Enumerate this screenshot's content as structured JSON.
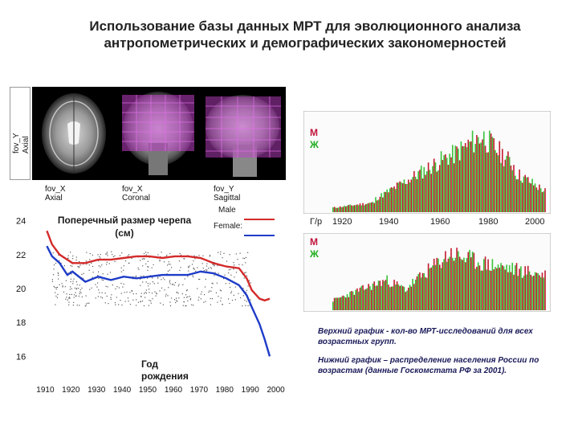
{
  "title_line1": "Использование базы данных МРТ для эволюционного анализа",
  "title_line2": "антропометрических и демографических закономерностей",
  "mri": {
    "side_label_1": "fov_Y",
    "side_label_2": "Axial",
    "captions": [
      {
        "l1": "fov_X",
        "l2": "Axial"
      },
      {
        "l1": "fov_X",
        "l2": "Coronal"
      },
      {
        "l1": "fov_Y",
        "l2": "Sagittal"
      }
    ]
  },
  "skull_chart": {
    "title_1": "Поперечный размер черепа",
    "title_2": "(см)",
    "legend_male": "Male",
    "legend_female": "Female:",
    "x_caption_1": "Год",
    "x_caption_2": "рождения",
    "y_ticks": [
      "24",
      "22",
      "20",
      "18",
      "16"
    ],
    "x_ticks": [
      "1910",
      "1920",
      "1930",
      "1940",
      "1950",
      "1960",
      "1970",
      "1980",
      "1990",
      "2000"
    ],
    "colors": {
      "male": "#d42a2a",
      "female": "#1e3cc8"
    }
  },
  "chart_data": [
    {
      "type": "line",
      "title": "Поперечный размер черепа (см)",
      "xlabel": "Год рождения",
      "x": [
        1910,
        1912,
        1915,
        1918,
        1920,
        1925,
        1930,
        1935,
        1940,
        1945,
        1950,
        1955,
        1960,
        1965,
        1970,
        1975,
        1980,
        1985,
        1988,
        1990,
        1993,
        1995,
        1997
      ],
      "series": [
        {
          "name": "Male",
          "values": [
            23.4,
            22.6,
            22.0,
            21.7,
            21.5,
            21.5,
            21.7,
            21.7,
            21.8,
            21.9,
            21.9,
            21.8,
            21.9,
            21.9,
            21.8,
            21.5,
            21.3,
            21.2,
            20.6,
            19.9,
            19.4,
            19.3,
            19.4
          ]
        },
        {
          "name": "Female",
          "values": [
            22.5,
            21.9,
            21.5,
            20.8,
            21.0,
            20.4,
            20.7,
            20.5,
            20.7,
            20.6,
            20.7,
            20.8,
            20.8,
            20.8,
            21.0,
            20.9,
            20.6,
            20.2,
            19.6,
            18.9,
            17.9,
            17.0,
            16.0
          ]
        }
      ],
      "ylim": [
        15.5,
        24.5
      ],
      "xlim": [
        1908,
        2002
      ]
    },
    {
      "type": "bar",
      "title": "",
      "x_ticks": [
        "1920",
        "1940",
        "1960",
        "1980",
        "2000"
      ],
      "x_prefix": "Г/р",
      "series": [
        {
          "name": "М"
        },
        {
          "name": "Ж"
        }
      ],
      "note": "Верхний график - кол-во МРТ-исследований для всех возрастных групп."
    },
    {
      "type": "bar",
      "title": "",
      "series": [
        {
          "name": "М"
        },
        {
          "name": "Ж"
        }
      ],
      "note": "Нижний график – распределение населения России по возрастам (данные Госкомстата РФ за 2001)."
    }
  ],
  "histo_top": {
    "m": "М",
    "zh": "Ж",
    "gr": "Г/р",
    "ticks": [
      "1920",
      "1940",
      "1960",
      "1980",
      "2000"
    ]
  },
  "histo_bottom": {
    "m": "М",
    "zh": "Ж"
  },
  "notes": {
    "upper": "Верхний график - кол-во МРТ-исследований для всех возрастных групп.",
    "lower": "Нижний график – распределение населения России по возрастам (данные Госкомстата РФ за 2001)."
  }
}
